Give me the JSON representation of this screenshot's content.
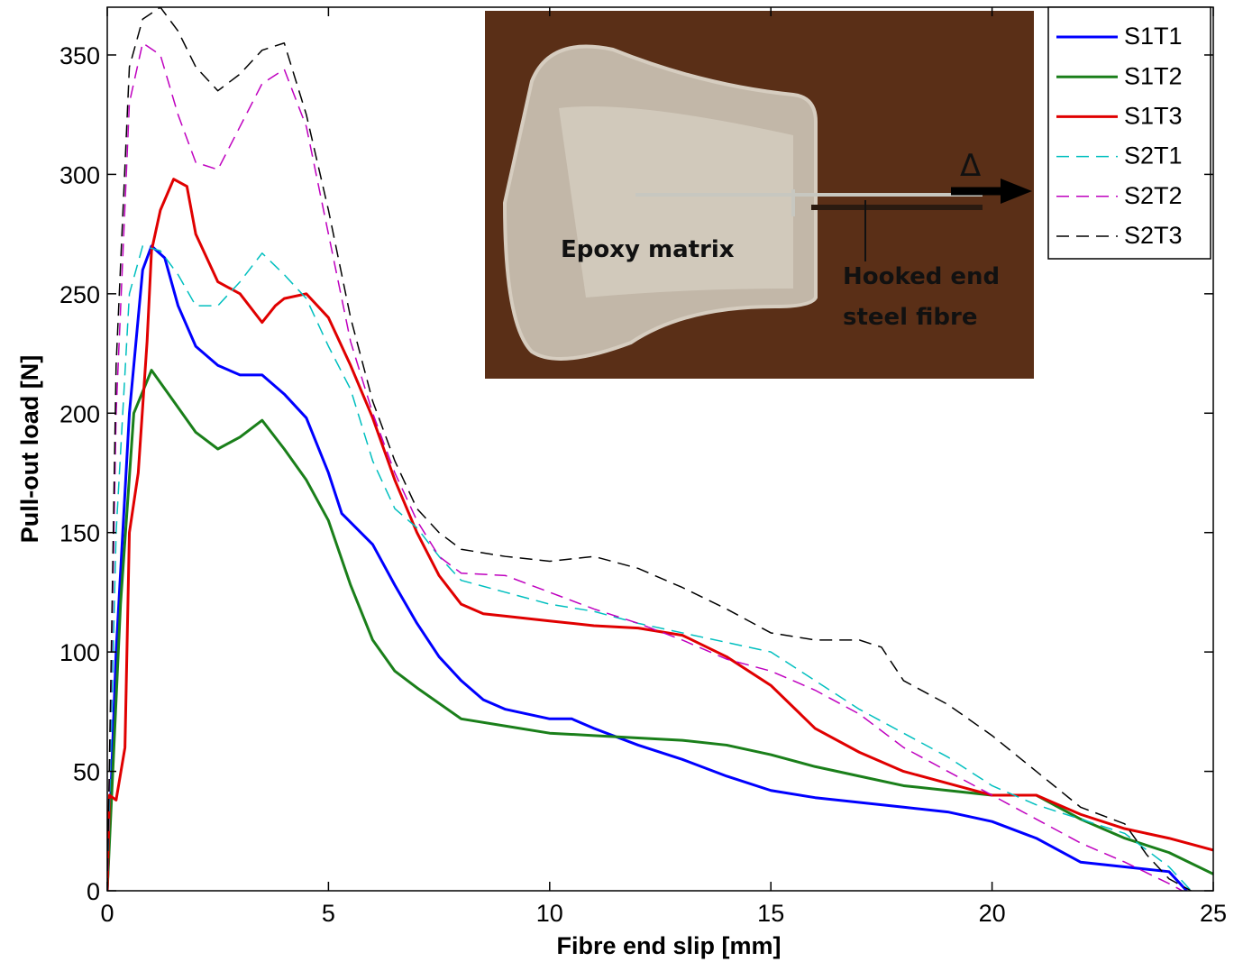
{
  "chart_data": {
    "type": "line",
    "xlabel": "Fibre end slip [mm]",
    "ylabel": "Pull-out load [N]",
    "xlim": [
      0,
      25
    ],
    "ylim": [
      0,
      370
    ],
    "xticks": [
      0,
      5,
      10,
      15,
      20,
      25
    ],
    "yticks": [
      0,
      50,
      100,
      150,
      200,
      250,
      300,
      350
    ],
    "grid": false,
    "legend": "upper right",
    "inset_labels": [
      "Epoxy matrix",
      "Hooked end",
      "steel fibre",
      "Δ"
    ],
    "series": [
      {
        "name": "S1T1",
        "color": "#0000ff",
        "dashed": false,
        "linewidth": 3,
        "x": [
          0,
          0.2,
          0.5,
          0.8,
          1,
          1.3,
          1.6,
          2,
          2.5,
          3,
          3.5,
          4,
          4.5,
          5,
          5.3,
          6,
          6.5,
          7,
          7.5,
          8,
          8.5,
          9,
          10,
          10.5,
          11,
          12,
          13,
          14,
          15,
          16,
          17,
          18,
          19,
          20,
          21,
          22,
          23,
          24,
          24.4
        ],
        "values": [
          0,
          100,
          200,
          260,
          270,
          265,
          245,
          228,
          220,
          216,
          216,
          208,
          198,
          175,
          158,
          145,
          128,
          112,
          98,
          88,
          80,
          76,
          72,
          72,
          68,
          61,
          55,
          48,
          42,
          39,
          37,
          35,
          33,
          29,
          22,
          12,
          10,
          8,
          0
        ]
      },
      {
        "name": "S1T2",
        "color": "#1a7f1a",
        "dashed": false,
        "linewidth": 3,
        "x": [
          0,
          0.3,
          0.6,
          1,
          1.5,
          2,
          2.5,
          3,
          3.5,
          4,
          4.5,
          5,
          5.5,
          6,
          6.5,
          7,
          8,
          9,
          10,
          11,
          12,
          13,
          14,
          15,
          16,
          17,
          18,
          19,
          20,
          21,
          21.5,
          22,
          23,
          24,
          25
        ],
        "values": [
          0,
          120,
          200,
          218,
          205,
          192,
          185,
          190,
          197,
          185,
          172,
          155,
          128,
          105,
          92,
          85,
          72,
          69,
          66,
          65,
          64,
          63,
          61,
          57,
          52,
          48,
          44,
          42,
          40,
          40,
          35,
          30,
          22,
          16,
          7
        ]
      },
      {
        "name": "S1T3",
        "color": "#e00000",
        "dashed": false,
        "linewidth": 3,
        "x": [
          0,
          0.05,
          0.2,
          0.4,
          0.5,
          0.7,
          0.9,
          1,
          1.2,
          1.5,
          1.8,
          2,
          2.5,
          3,
          3.5,
          3.8,
          4,
          4.5,
          5,
          5.5,
          6,
          6.5,
          7,
          7.5,
          8,
          8.5,
          9,
          10,
          11,
          12,
          13,
          14,
          15,
          16,
          17,
          18,
          19,
          20,
          21,
          22,
          23,
          24,
          25
        ],
        "values": [
          0,
          40,
          38,
          60,
          150,
          175,
          230,
          268,
          285,
          298,
          295,
          275,
          255,
          250,
          238,
          245,
          248,
          250,
          240,
          220,
          198,
          172,
          150,
          132,
          120,
          116,
          115,
          113,
          111,
          110,
          107,
          98,
          86,
          68,
          58,
          50,
          45,
          40,
          40,
          32,
          26,
          22,
          17
        ]
      },
      {
        "name": "S2T1",
        "color": "#00bfbf",
        "dashed": true,
        "linewidth": 1.5,
        "x": [
          0,
          0.2,
          0.5,
          0.8,
          1.2,
          1.6,
          2,
          2.5,
          3,
          3.5,
          4,
          4.5,
          5,
          5.5,
          6,
          6.5,
          7,
          7.5,
          8,
          9,
          10,
          11,
          12,
          13,
          14,
          15,
          16,
          17,
          18,
          19,
          20,
          21,
          22,
          23,
          24,
          24.5
        ],
        "values": [
          0,
          150,
          250,
          270,
          268,
          258,
          245,
          245,
          255,
          267,
          258,
          248,
          228,
          210,
          180,
          160,
          152,
          140,
          130,
          125,
          120,
          117,
          112,
          108,
          104,
          100,
          88,
          76,
          66,
          56,
          44,
          36,
          30,
          24,
          10,
          0
        ]
      },
      {
        "name": "S2T2",
        "color": "#bf00bf",
        "dashed": true,
        "linewidth": 1.5,
        "x": [
          0,
          0.2,
          0.5,
          0.8,
          1.2,
          1.6,
          2,
          2.5,
          3,
          3.5,
          4,
          4.5,
          5,
          5.5,
          6,
          6.5,
          7,
          7.5,
          8,
          9,
          10,
          11,
          12,
          13,
          14,
          15,
          16,
          17,
          18,
          19,
          20,
          21,
          22,
          23,
          24,
          24.3
        ],
        "values": [
          0,
          200,
          330,
          355,
          350,
          325,
          305,
          302,
          320,
          338,
          344,
          320,
          275,
          230,
          200,
          175,
          155,
          140,
          133,
          132,
          125,
          118,
          112,
          105,
          97,
          92,
          84,
          74,
          60,
          50,
          40,
          30,
          20,
          12,
          3,
          0
        ]
      },
      {
        "name": "S2T3",
        "color": "#000000",
        "dashed": true,
        "linewidth": 1.5,
        "x": [
          0,
          0.2,
          0.5,
          0.8,
          1.2,
          1.6,
          2,
          2.5,
          3,
          3.5,
          4,
          4.5,
          5,
          5.5,
          6,
          6.5,
          7,
          7.5,
          8,
          9,
          10,
          11,
          12,
          13,
          14,
          15,
          16,
          17,
          17.5,
          18,
          19,
          20,
          21,
          22,
          23,
          23.5,
          24,
          24.5
        ],
        "values": [
          0,
          220,
          345,
          365,
          370,
          360,
          345,
          335,
          342,
          352,
          355,
          325,
          285,
          240,
          205,
          180,
          160,
          150,
          143,
          140,
          138,
          140,
          135,
          127,
          118,
          108,
          105,
          105,
          102,
          88,
          78,
          65,
          50,
          35,
          28,
          15,
          5,
          0
        ]
      }
    ]
  }
}
